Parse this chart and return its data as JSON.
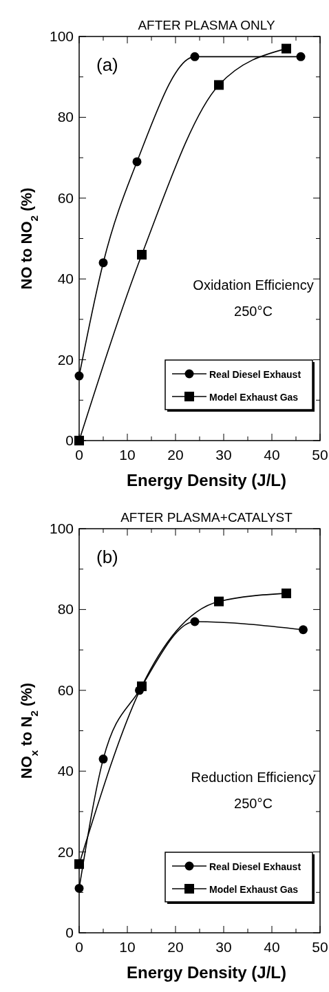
{
  "chart_data": [
    {
      "type": "line",
      "title": "AFTER PLASMA ONLY",
      "xlabel": "Energy Density (J/L)",
      "ylabel": "NO to NO$_{2}$ (%)",
      "xlim": [
        0,
        50
      ],
      "ylim": [
        0,
        100
      ],
      "xticks": [
        0,
        {
          "value": 5,
          "label": null
        },
        10,
        {
          "value": 15,
          "label": null
        },
        20,
        {
          "value": 25,
          "label": null
        },
        30,
        {
          "value": 35,
          "label": null
        },
        40,
        {
          "value": 45,
          "label": null
        },
        50
      ],
      "yticks": [
        0,
        {
          "value": 10,
          "label": null
        },
        20,
        {
          "value": 30,
          "label": null
        },
        40,
        {
          "value": 50,
          "label": null
        },
        60,
        {
          "value": 70,
          "label": null
        },
        80,
        {
          "value": 90,
          "label": null
        },
        100
      ],
      "annotations": [
        "(a)",
        "Oxidation Efficiency",
        "250°C"
      ],
      "legend": "bottom right",
      "series": [
        {
          "name": "Real Diesel Exhaust",
          "color": "#000000",
          "marker": "circle",
          "x": [
            0,
            5,
            12,
            24,
            46
          ],
          "values": [
            16,
            44,
            69,
            95,
            95
          ]
        },
        {
          "name": "Model Exhaust Gas",
          "color": "#000000",
          "marker": "square",
          "x": [
            0,
            13,
            29,
            43
          ],
          "values": [
            0,
            46,
            88,
            97
          ]
        }
      ]
    },
    {
      "type": "line",
      "title": "AFTER PLASMA+CATALYST",
      "xlabel": "Energy Density (J/L)",
      "ylabel": "NO$_{x}$ to N$_{2}$ (%)",
      "xlim": [
        0,
        50
      ],
      "ylim": [
        0,
        100
      ],
      "xticks": [
        0,
        {
          "value": 5,
          "label": null
        },
        10,
        {
          "value": 15,
          "label": null
        },
        20,
        {
          "value": 25,
          "label": null
        },
        30,
        {
          "value": 35,
          "label": null
        },
        40,
        {
          "value": 45,
          "label": null
        },
        50
      ],
      "yticks": [
        0,
        {
          "value": 10,
          "label": null
        },
        20,
        {
          "value": 30,
          "label": null
        },
        40,
        {
          "value": 50,
          "label": null
        },
        60,
        {
          "value": 70,
          "label": null
        },
        80,
        {
          "value": 90,
          "label": null
        },
        100
      ],
      "annotations": [
        "(b)",
        "Reduction Efficiency",
        "250°C"
      ],
      "legend": "bottom right",
      "series": [
        {
          "name": "Real Diesel Exhaust",
          "color": "#000000",
          "marker": "circle",
          "x": [
            0,
            5,
            12.5,
            24,
            46.5
          ],
          "values": [
            11,
            43,
            60,
            77,
            75
          ]
        },
        {
          "name": "Model Exhaust Gas",
          "color": "#000000",
          "marker": "square",
          "x": [
            0,
            13,
            29,
            43
          ],
          "values": [
            17,
            61,
            82,
            84
          ]
        }
      ]
    }
  ]
}
